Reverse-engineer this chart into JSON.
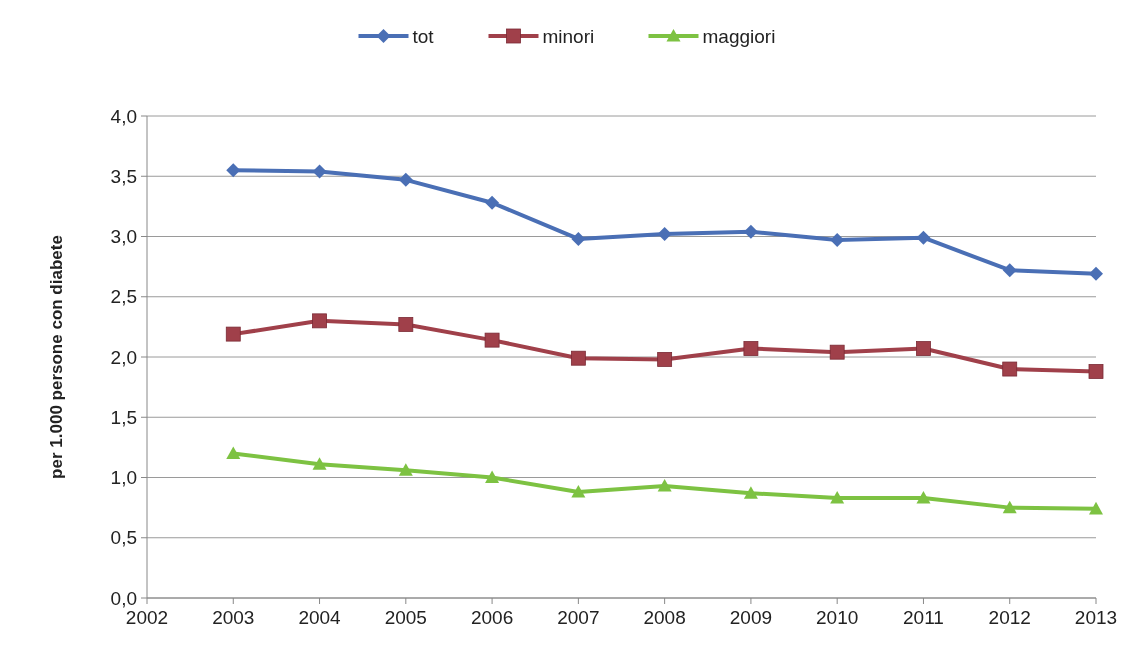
{
  "chart_data": {
    "type": "line",
    "ylabel": "per 1.000 persone con diabete",
    "x": [
      2003,
      2004,
      2005,
      2006,
      2007,
      2008,
      2009,
      2010,
      2011,
      2012,
      2013
    ],
    "xlim": [
      2002,
      2013
    ],
    "xticks": [
      2002,
      2003,
      2004,
      2005,
      2006,
      2007,
      2008,
      2009,
      2010,
      2011,
      2012,
      2013
    ],
    "ylim": [
      0,
      4
    ],
    "yticks": [
      {
        "value": 0,
        "label": "0,0"
      },
      {
        "value": 0.5,
        "label": "0,5"
      },
      {
        "value": 1,
        "label": "1,0"
      },
      {
        "value": 1.5,
        "label": "1,5"
      },
      {
        "value": 2,
        "label": "2,0"
      },
      {
        "value": 2.5,
        "label": "2,5"
      },
      {
        "value": 3,
        "label": "3,0"
      },
      {
        "value": 3.5,
        "label": "3,5"
      },
      {
        "value": 4,
        "label": "4,0"
      }
    ],
    "grid": "y",
    "legend": "top",
    "series": [
      {
        "name": "tot",
        "color": "#4a6fb5",
        "marker": "diamond",
        "values": [
          3.55,
          3.54,
          3.47,
          3.28,
          2.98,
          3.02,
          3.04,
          2.97,
          2.99,
          2.72,
          2.69
        ]
      },
      {
        "name": "minori",
        "color": "#a0404a",
        "marker": "square",
        "values": [
          2.19,
          2.3,
          2.27,
          2.14,
          1.99,
          1.98,
          2.07,
          2.04,
          2.07,
          1.9,
          1.88
        ]
      },
      {
        "name": "maggiori",
        "color": "#7dc242",
        "marker": "triangle",
        "values": [
          1.2,
          1.11,
          1.06,
          1.0,
          0.88,
          0.93,
          0.87,
          0.83,
          0.83,
          0.75,
          0.74
        ]
      }
    ]
  }
}
